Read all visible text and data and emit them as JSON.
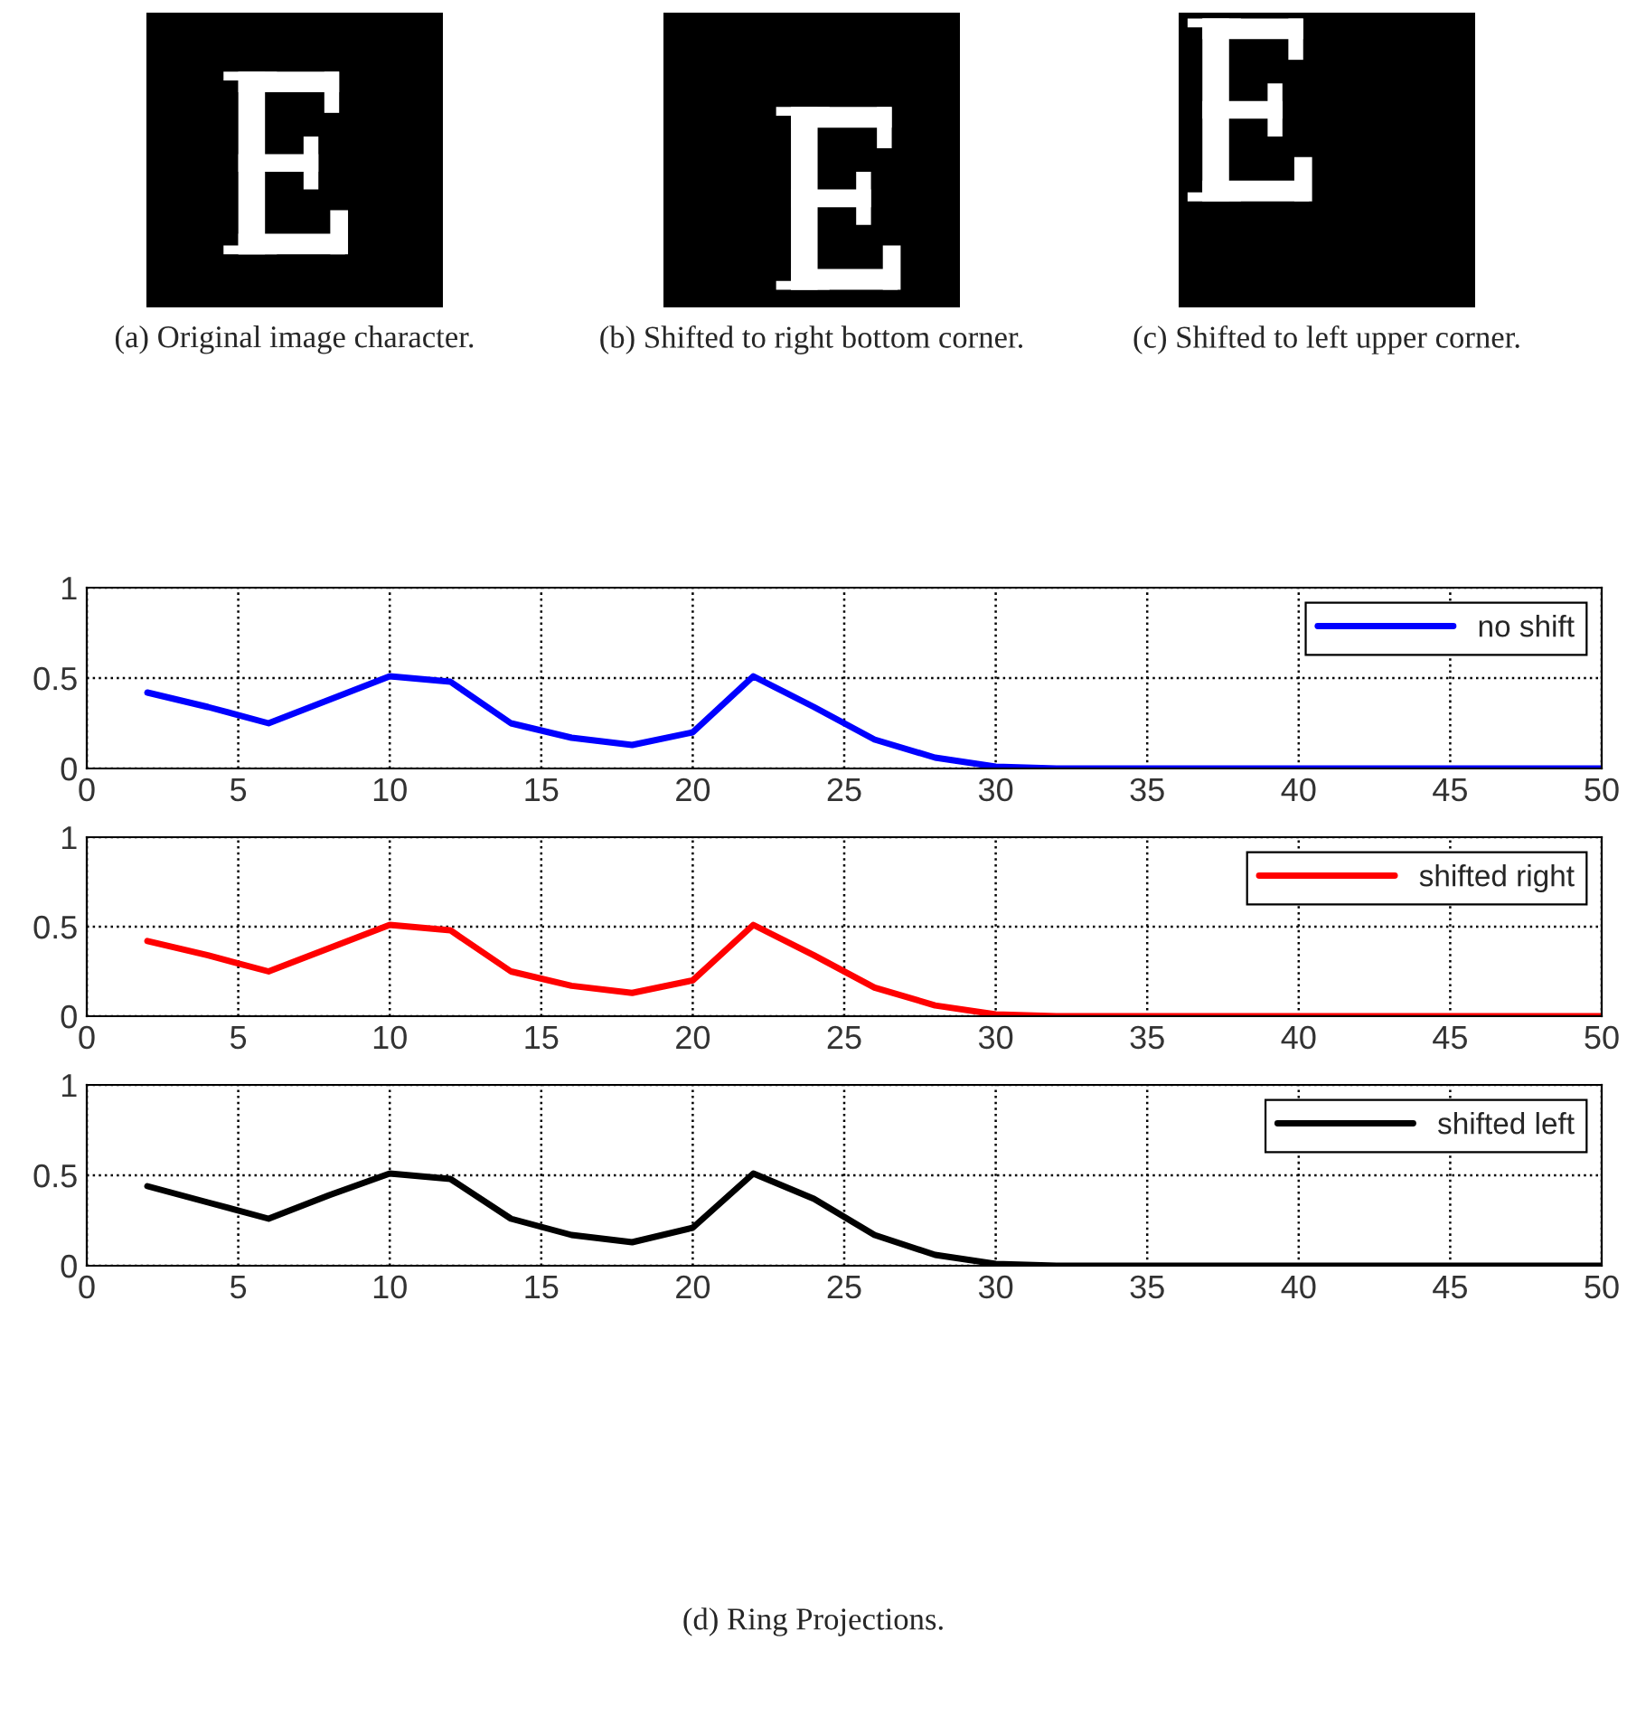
{
  "chart_data": [
    {
      "type": "other",
      "annotations": [
        "(a) Original image character.",
        "(b) Shifted to right bottom corner.",
        "(c) Shifted to left upper corner."
      ]
    },
    {
      "type": "line",
      "x": [
        2,
        4,
        6,
        8,
        10,
        12,
        14,
        16,
        18,
        20,
        22,
        24,
        26,
        28,
        30,
        32,
        34,
        36,
        38,
        40,
        42,
        44,
        46,
        48,
        50
      ],
      "series": [
        {
          "name": "no shift",
          "color": "#0000ff",
          "values": [
            0.42,
            0.34,
            0.25,
            0.38,
            0.51,
            0.48,
            0.25,
            0.17,
            0.13,
            0.2,
            0.51,
            0.34,
            0.16,
            0.06,
            0.01,
            0,
            0,
            0,
            0,
            0,
            0,
            0,
            0,
            0,
            0
          ]
        }
      ],
      "xlim": [
        0,
        50
      ],
      "xticks": [
        0,
        5,
        10,
        15,
        20,
        25,
        30,
        35,
        40,
        45,
        50
      ],
      "ylim": [
        0,
        1
      ],
      "yticks": [
        0,
        0.5,
        1
      ],
      "grid": true,
      "legend": "top right",
      "line_style": "solid",
      "marker": "none"
    },
    {
      "type": "line",
      "x": [
        2,
        4,
        6,
        8,
        10,
        12,
        14,
        16,
        18,
        20,
        22,
        24,
        26,
        28,
        30,
        32,
        34,
        36,
        38,
        40,
        42,
        44,
        46,
        48,
        50
      ],
      "series": [
        {
          "name": "shifted right",
          "color": "#ff0000",
          "values": [
            0.42,
            0.34,
            0.25,
            0.38,
            0.51,
            0.48,
            0.25,
            0.17,
            0.13,
            0.2,
            0.51,
            0.34,
            0.16,
            0.06,
            0.01,
            0,
            0,
            0,
            0,
            0,
            0,
            0,
            0,
            0,
            0
          ]
        }
      ],
      "xlim": [
        0,
        50
      ],
      "xticks": [
        0,
        5,
        10,
        15,
        20,
        25,
        30,
        35,
        40,
        45,
        50
      ],
      "ylim": [
        0,
        1
      ],
      "yticks": [
        0,
        0.5,
        1
      ],
      "grid": true,
      "legend": "top right",
      "line_style": "solid",
      "marker": "none"
    },
    {
      "type": "line",
      "x": [
        2,
        4,
        6,
        8,
        10,
        12,
        14,
        16,
        18,
        20,
        22,
        24,
        26,
        28,
        30,
        32,
        34,
        36,
        38,
        40,
        42,
        44,
        46,
        48,
        50
      ],
      "series": [
        {
          "name": "shifted left",
          "color": "#000000",
          "values": [
            0.44,
            0.35,
            0.26,
            0.39,
            0.51,
            0.48,
            0.26,
            0.17,
            0.13,
            0.21,
            0.51,
            0.37,
            0.17,
            0.06,
            0.01,
            0,
            0,
            0,
            0,
            0,
            0,
            0,
            0,
            0,
            0
          ]
        }
      ],
      "xlim": [
        0,
        50
      ],
      "xticks": [
        0,
        5,
        10,
        15,
        20,
        25,
        30,
        35,
        40,
        45,
        50
      ],
      "ylim": [
        0,
        1
      ],
      "yticks": [
        0,
        0.5,
        1
      ],
      "grid": true,
      "legend": "top right",
      "line_style": "solid",
      "marker": "none",
      "annotations": [
        "(d) Ring Projections."
      ]
    }
  ]
}
